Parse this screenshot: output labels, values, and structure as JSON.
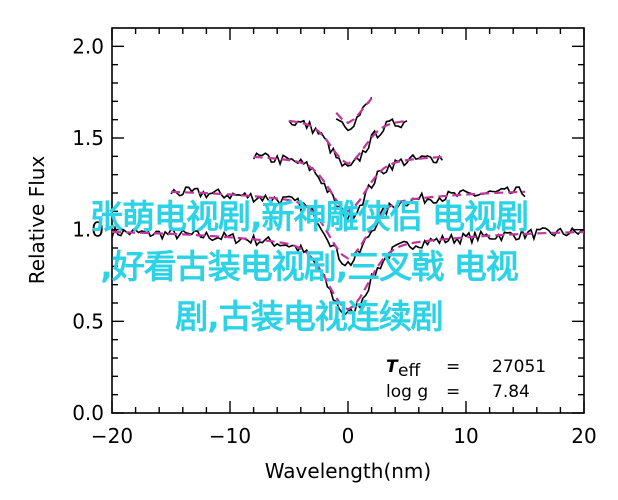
{
  "chart_data": {
    "type": "line",
    "xlabel": "Wavelength(nm)",
    "ylabel": "Relative Flux",
    "xlim": [
      -20,
      20
    ],
    "ylim": [
      0.0,
      2.1
    ],
    "xticks": [
      -20,
      -10,
      0,
      10,
      20
    ],
    "yticks": [
      0.0,
      0.5,
      1.0,
      1.5,
      2.0
    ],
    "xtick_labels": [
      "−20",
      "−10",
      "0",
      "10",
      "20"
    ],
    "ytick_labels": [
      "0.0",
      "0.5",
      "1.0",
      "1.5",
      "2.0"
    ],
    "grid": false,
    "annotations": {
      "teff_symbol": "T",
      "teff_sub": "eff",
      "teff_eq": "=",
      "teff_value": "27051",
      "logg_symbol": "log g",
      "logg_eq": "=",
      "logg_value": "7.84"
    },
    "series": [
      {
        "style": "observed",
        "color": "#000000",
        "offset": 0.0,
        "depth": 0.32,
        "width": 1.7,
        "wing": 8.5,
        "xrange": [
          -20,
          20
        ]
      },
      {
        "style": "model",
        "color": "#c0369c",
        "offset": 0.0,
        "depth": 0.3,
        "width": 1.7,
        "wing": 8.5,
        "xrange": [
          -20,
          20
        ]
      },
      {
        "style": "observed",
        "color": "#000000",
        "offset": 0.22,
        "depth": 0.28,
        "width": 1.6,
        "wing": 7.0,
        "xrange": [
          -15,
          15
        ]
      },
      {
        "style": "model",
        "color": "#c0369c",
        "offset": 0.22,
        "depth": 0.26,
        "width": 1.6,
        "wing": 7.0,
        "xrange": [
          -15,
          15
        ]
      },
      {
        "style": "observed",
        "color": "#000000",
        "offset": 0.42,
        "depth": 0.24,
        "width": 1.5,
        "wing": 5.5,
        "xrange": [
          -8,
          8
        ]
      },
      {
        "style": "model",
        "color": "#c0369c",
        "offset": 0.42,
        "depth": 0.22,
        "width": 1.5,
        "wing": 5.5,
        "xrange": [
          -8,
          8
        ]
      },
      {
        "style": "observed",
        "color": "#000000",
        "offset": 0.62,
        "depth": 0.2,
        "width": 1.4,
        "wing": 4.5,
        "xrange": [
          -5,
          5
        ]
      },
      {
        "style": "model",
        "color": "#c0369c",
        "offset": 0.62,
        "depth": 0.18,
        "width": 1.4,
        "wing": 4.5,
        "xrange": [
          -5,
          5
        ]
      },
      {
        "style": "observed",
        "color": "#000000",
        "offset": 0.8,
        "depth": 0.16,
        "width": 1.3,
        "wing": 3.6,
        "xrange": [
          -1,
          2.2
        ]
      },
      {
        "style": "model",
        "color": "#c0369c",
        "offset": 0.8,
        "depth": 0.15,
        "width": 1.3,
        "wing": 3.6,
        "xrange": [
          -1,
          2.2
        ]
      }
    ]
  },
  "overlay": {
    "line1": "张萌电视剧,新神雕侠侣 电视剧",
    "line2": ",好看古装电视剧,三叉戟 电视",
    "line3": "剧,古装电视连续剧"
  }
}
